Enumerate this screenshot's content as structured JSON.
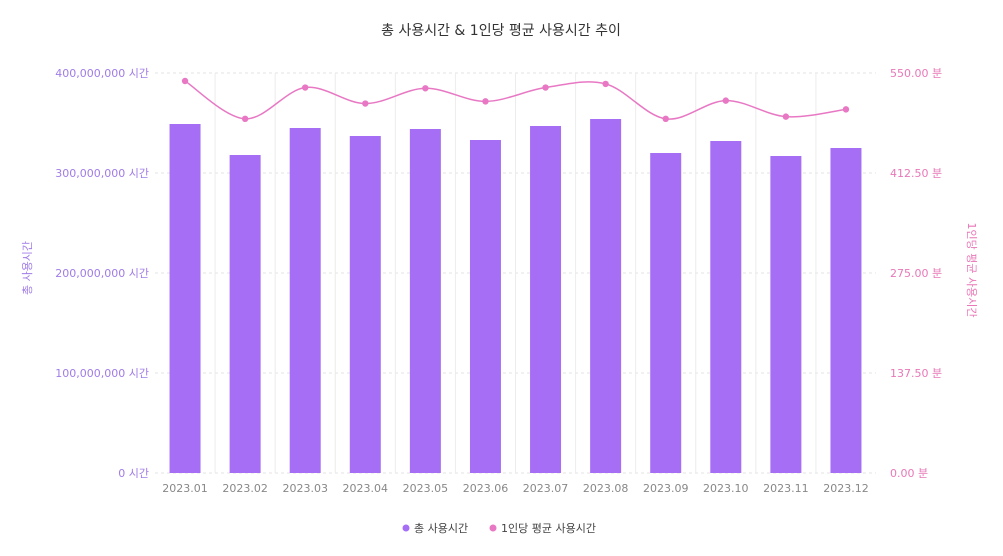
{
  "chart_data": {
    "type": "bar",
    "title": "총 사용시간 & 1인당 평균 사용시간 추이",
    "categories": [
      "2023.01",
      "2023.02",
      "2023.03",
      "2023.04",
      "2023.05",
      "2023.06",
      "2023.07",
      "2023.08",
      "2023.09",
      "2023.10",
      "2023.11",
      "2023.12"
    ],
    "series": [
      {
        "name": "총 사용시간",
        "kind": "bar",
        "axis": "left",
        "color": "#a66ef5",
        "values": [
          349000000,
          318000000,
          345000000,
          337000000,
          344000000,
          333000000,
          347000000,
          354000000,
          320000000,
          332000000,
          317000000,
          325000000
        ]
      },
      {
        "name": "1인당 평균 사용시간",
        "kind": "line",
        "axis": "right",
        "color": "#e878c4",
        "values": [
          539,
          487,
          530,
          508,
          529,
          511,
          530,
          535,
          487,
          512,
          490,
          500
        ]
      }
    ],
    "ylabel": "총 사용시간",
    "y2label": "1인당 평균 사용시간",
    "ylim": [
      0,
      400000000
    ],
    "y2lim": [
      0,
      550
    ],
    "yticks": [
      "0 시간",
      "100,000,000 시간",
      "200,000,000 시간",
      "300,000,000 시간",
      "400,000,000 시간"
    ],
    "y2ticks": [
      "0.00 분",
      "137.50 분",
      "275.00 분",
      "412.50 분",
      "550.00 분"
    ],
    "grid": true,
    "legend_position": "bottom"
  }
}
